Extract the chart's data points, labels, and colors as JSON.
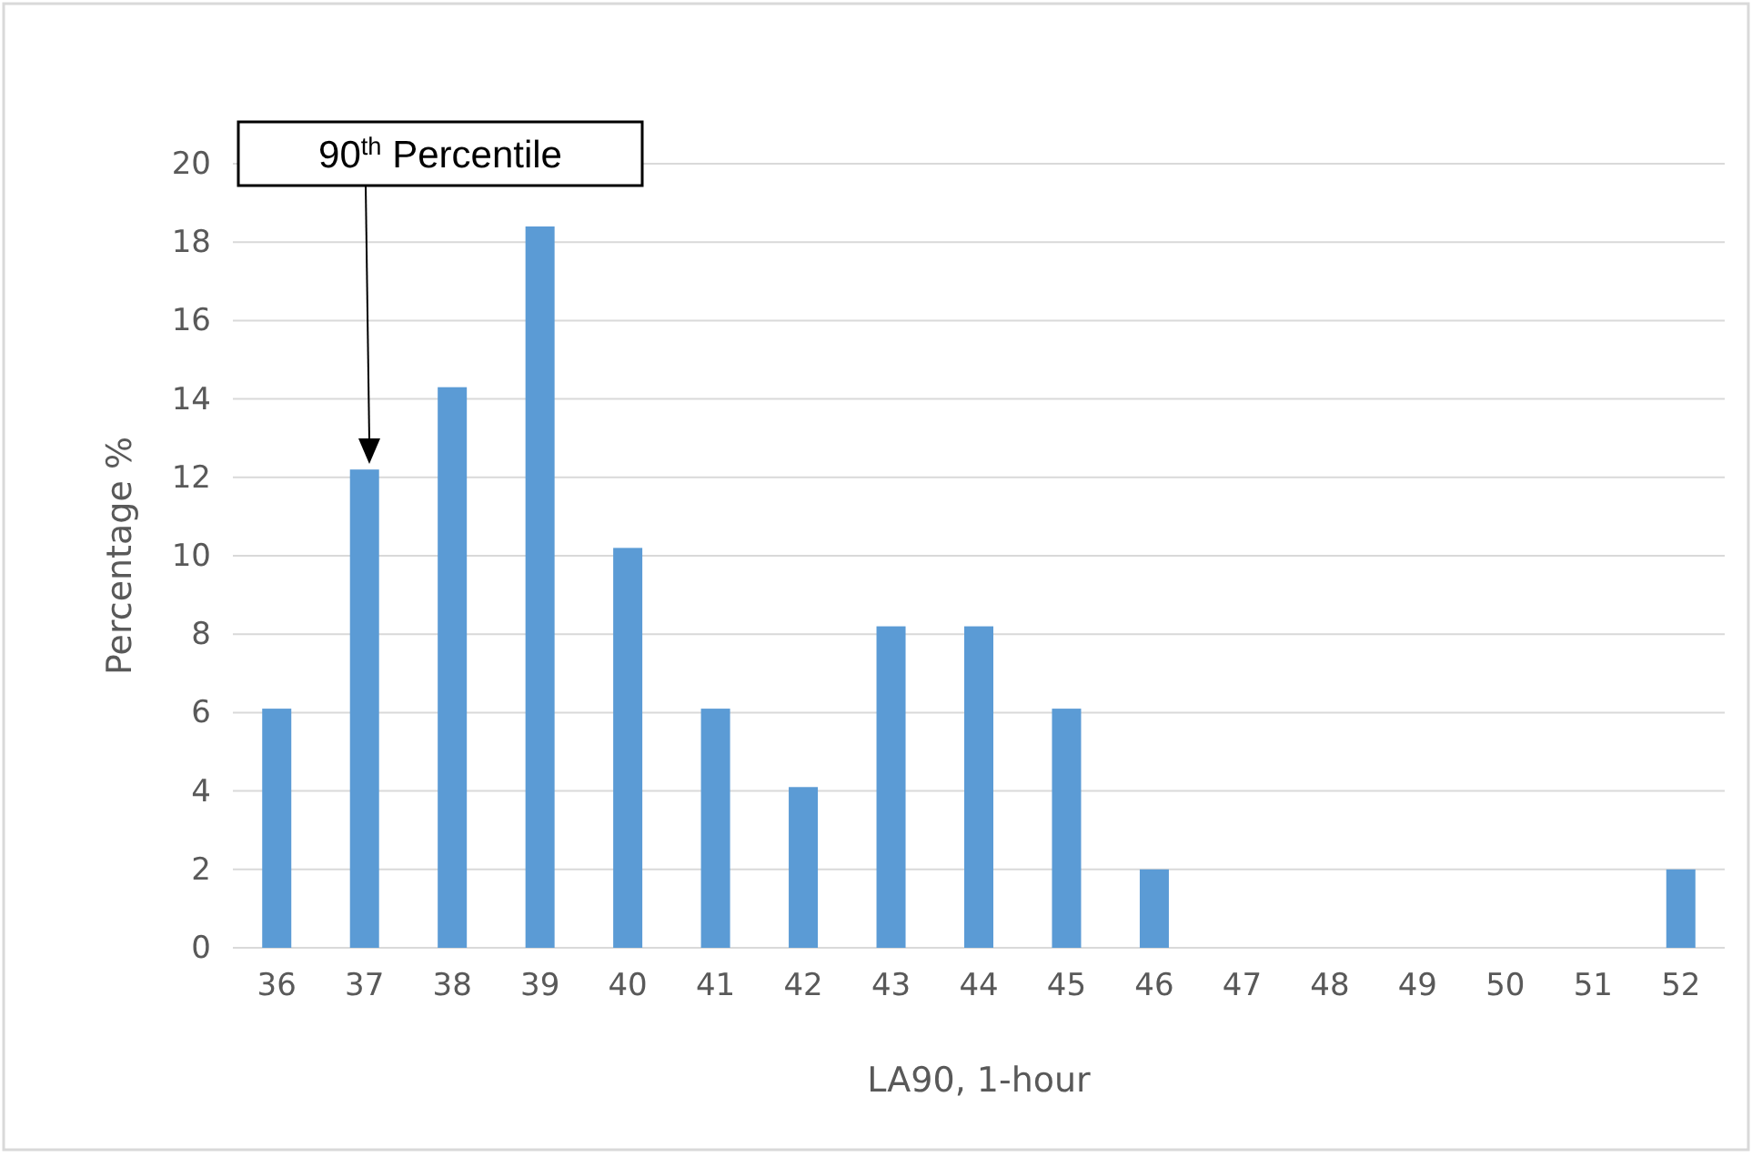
{
  "chart_data": {
    "type": "bar",
    "categories": [
      "36",
      "37",
      "38",
      "39",
      "40",
      "41",
      "42",
      "43",
      "44",
      "45",
      "46",
      "47",
      "48",
      "49",
      "50",
      "51",
      "52"
    ],
    "values": [
      6.1,
      12.2,
      14.3,
      18.4,
      10.2,
      6.1,
      4.1,
      8.2,
      8.2,
      6.1,
      2.0,
      0,
      0,
      0,
      0,
      0,
      2.0
    ],
    "color": "#5b9bd5",
    "xlabel": "LA90, 1-hour",
    "ylabel": "Percentage %",
    "ylim": [
      0,
      20
    ],
    "yticks": [
      0,
      2,
      4,
      6,
      8,
      10,
      12,
      14,
      16,
      18,
      20
    ],
    "grid": "y",
    "annotations": [
      "90$^{th}$ Percentile"
    ]
  }
}
